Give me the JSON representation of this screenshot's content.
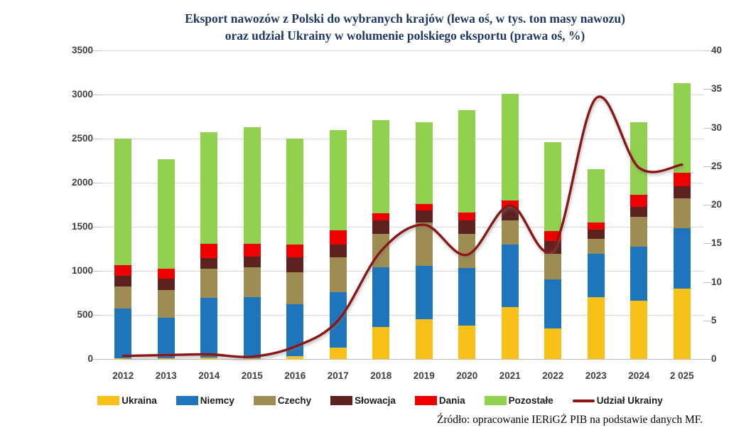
{
  "title": {
    "line1": "Eksport nawozów z Polski do wybranych krajów (lewa oś, w tys. ton masy nawozu)",
    "line2": "oraz udział Ukrainy w wolumenie polskiego eksportu (prawa oś, %)",
    "color": "#1f3864"
  },
  "source": "Źródło: opracowanie IERiGŻ PIB na podstawie danych MF.",
  "chart_data": {
    "type": "bar",
    "subtype": "stacked-bars-with-line",
    "categories": [
      "2012",
      "2013",
      "2014",
      "2015",
      "2016",
      "2017",
      "2018",
      "2019",
      "2020",
      "2021",
      "2022",
      "2023",
      "2024",
      "2 025"
    ],
    "series": [
      {
        "name": "Ukraina",
        "color": "#f7c119",
        "axis": "left",
        "values": [
          10,
          10,
          15,
          10,
          30,
          130,
          365,
          455,
          380,
          590,
          350,
          705,
          665,
          795
        ]
      },
      {
        "name": "Niemcy",
        "color": "#1e75bb",
        "axis": "left",
        "values": [
          560,
          460,
          680,
          695,
          590,
          630,
          675,
          605,
          650,
          710,
          555,
          485,
          610,
          690
        ]
      },
      {
        "name": "Czechy",
        "color": "#9d8d52",
        "axis": "left",
        "values": [
          255,
          315,
          330,
          335,
          365,
          390,
          380,
          485,
          390,
          270,
          285,
          175,
          340,
          335
        ]
      },
      {
        "name": "Słowacja",
        "color": "#5d2120",
        "axis": "left",
        "values": [
          120,
          130,
          120,
          120,
          165,
          150,
          150,
          140,
          150,
          150,
          150,
          105,
          110,
          140
        ]
      },
      {
        "name": "Dania",
        "color": "#ee0000",
        "axis": "left",
        "values": [
          120,
          110,
          165,
          150,
          150,
          160,
          80,
          75,
          95,
          80,
          110,
          75,
          135,
          150
        ]
      },
      {
        "name": "Pozostałe",
        "color": "#92d050",
        "axis": "left",
        "values": [
          1435,
          1240,
          1260,
          1320,
          1200,
          1140,
          1060,
          925,
          1155,
          1210,
          1010,
          605,
          825,
          1020
        ]
      }
    ],
    "bar_totals": [
      2500,
      2265,
      2570,
      2630,
      2500,
      2600,
      2710,
      2685,
      2820,
      3010,
      2460,
      2150,
      2685,
      3130
    ],
    "line_series": {
      "name": "Udział Ukrainy",
      "color": "#8c1613",
      "axis": "right",
      "values": [
        0.4,
        0.5,
        0.6,
        0.3,
        1.6,
        5.0,
        14.0,
        17.4,
        13.5,
        19.9,
        14.3,
        33.8,
        24.8,
        25.2
      ]
    },
    "left_axis": {
      "min": 0,
      "max": 3500,
      "step": 500,
      "ticks": [
        "0",
        "500",
        "1000",
        "1500",
        "2000",
        "2500",
        "3000",
        "3500"
      ]
    },
    "right_axis": {
      "min": 0,
      "max": 40,
      "step": 5,
      "ticks": [
        "0",
        "5",
        "10",
        "15",
        "20",
        "25",
        "30",
        "35",
        "40"
      ]
    },
    "grid": true,
    "gridline_color": "#d9d9d9",
    "legend_position": "bottom"
  }
}
